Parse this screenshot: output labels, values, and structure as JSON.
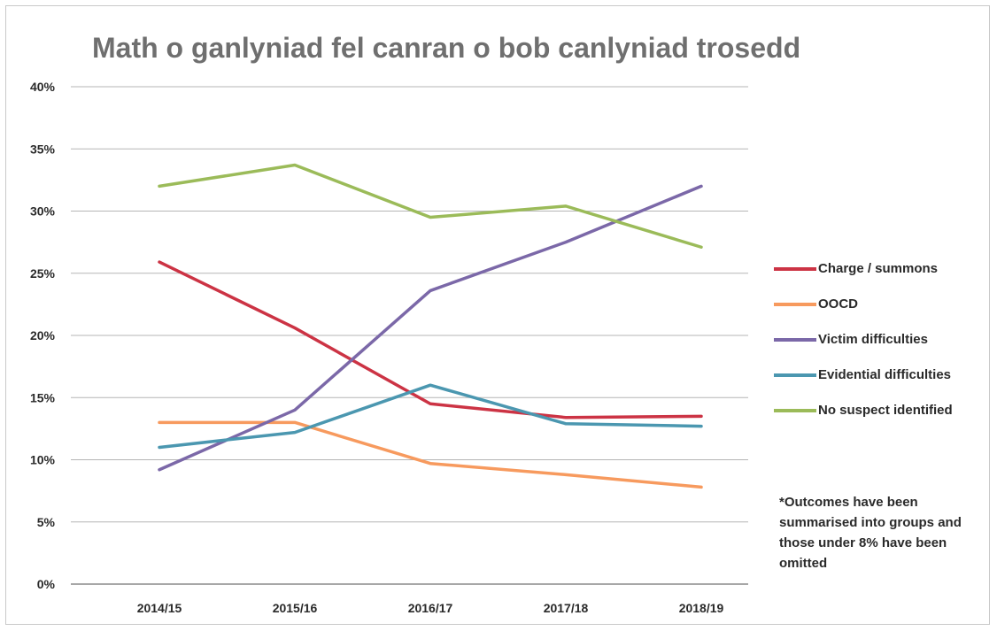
{
  "chart_data": {
    "type": "line",
    "title": "Math o ganlyniad fel canran o bob canlyniad trosedd",
    "xlabel": "",
    "ylabel": "",
    "categories": [
      "2014/15",
      "2015/16",
      "2016/17",
      "2017/18",
      "2018/19"
    ],
    "yticks": [
      "0%",
      "5%",
      "10%",
      "15%",
      "20%",
      "25%",
      "30%",
      "35%",
      "40%"
    ],
    "ylim": [
      0,
      40
    ],
    "grid": true,
    "legend_position": "right",
    "series": [
      {
        "name": "Charge / summons",
        "color": "#cc3344",
        "values": [
          25.9,
          20.6,
          14.5,
          13.4,
          13.5
        ]
      },
      {
        "name": "OOCD",
        "color": "#f79a5e",
        "values": [
          13.0,
          13.0,
          9.7,
          8.8,
          7.8
        ]
      },
      {
        "name": "Victim difficulties",
        "color": "#7b68a8",
        "values": [
          9.2,
          14.0,
          23.6,
          27.5,
          32.0
        ]
      },
      {
        "name": "Evidential difficulties",
        "color": "#4b97b0",
        "values": [
          11.0,
          12.2,
          16.0,
          12.9,
          12.7
        ]
      },
      {
        "name": "No suspect identified",
        "color": "#9bbb59",
        "values": [
          32.0,
          33.7,
          29.5,
          30.4,
          27.1
        ]
      }
    ],
    "annotation": "*Outcomes have been summarised into groups and those under 8% have been omitted"
  }
}
